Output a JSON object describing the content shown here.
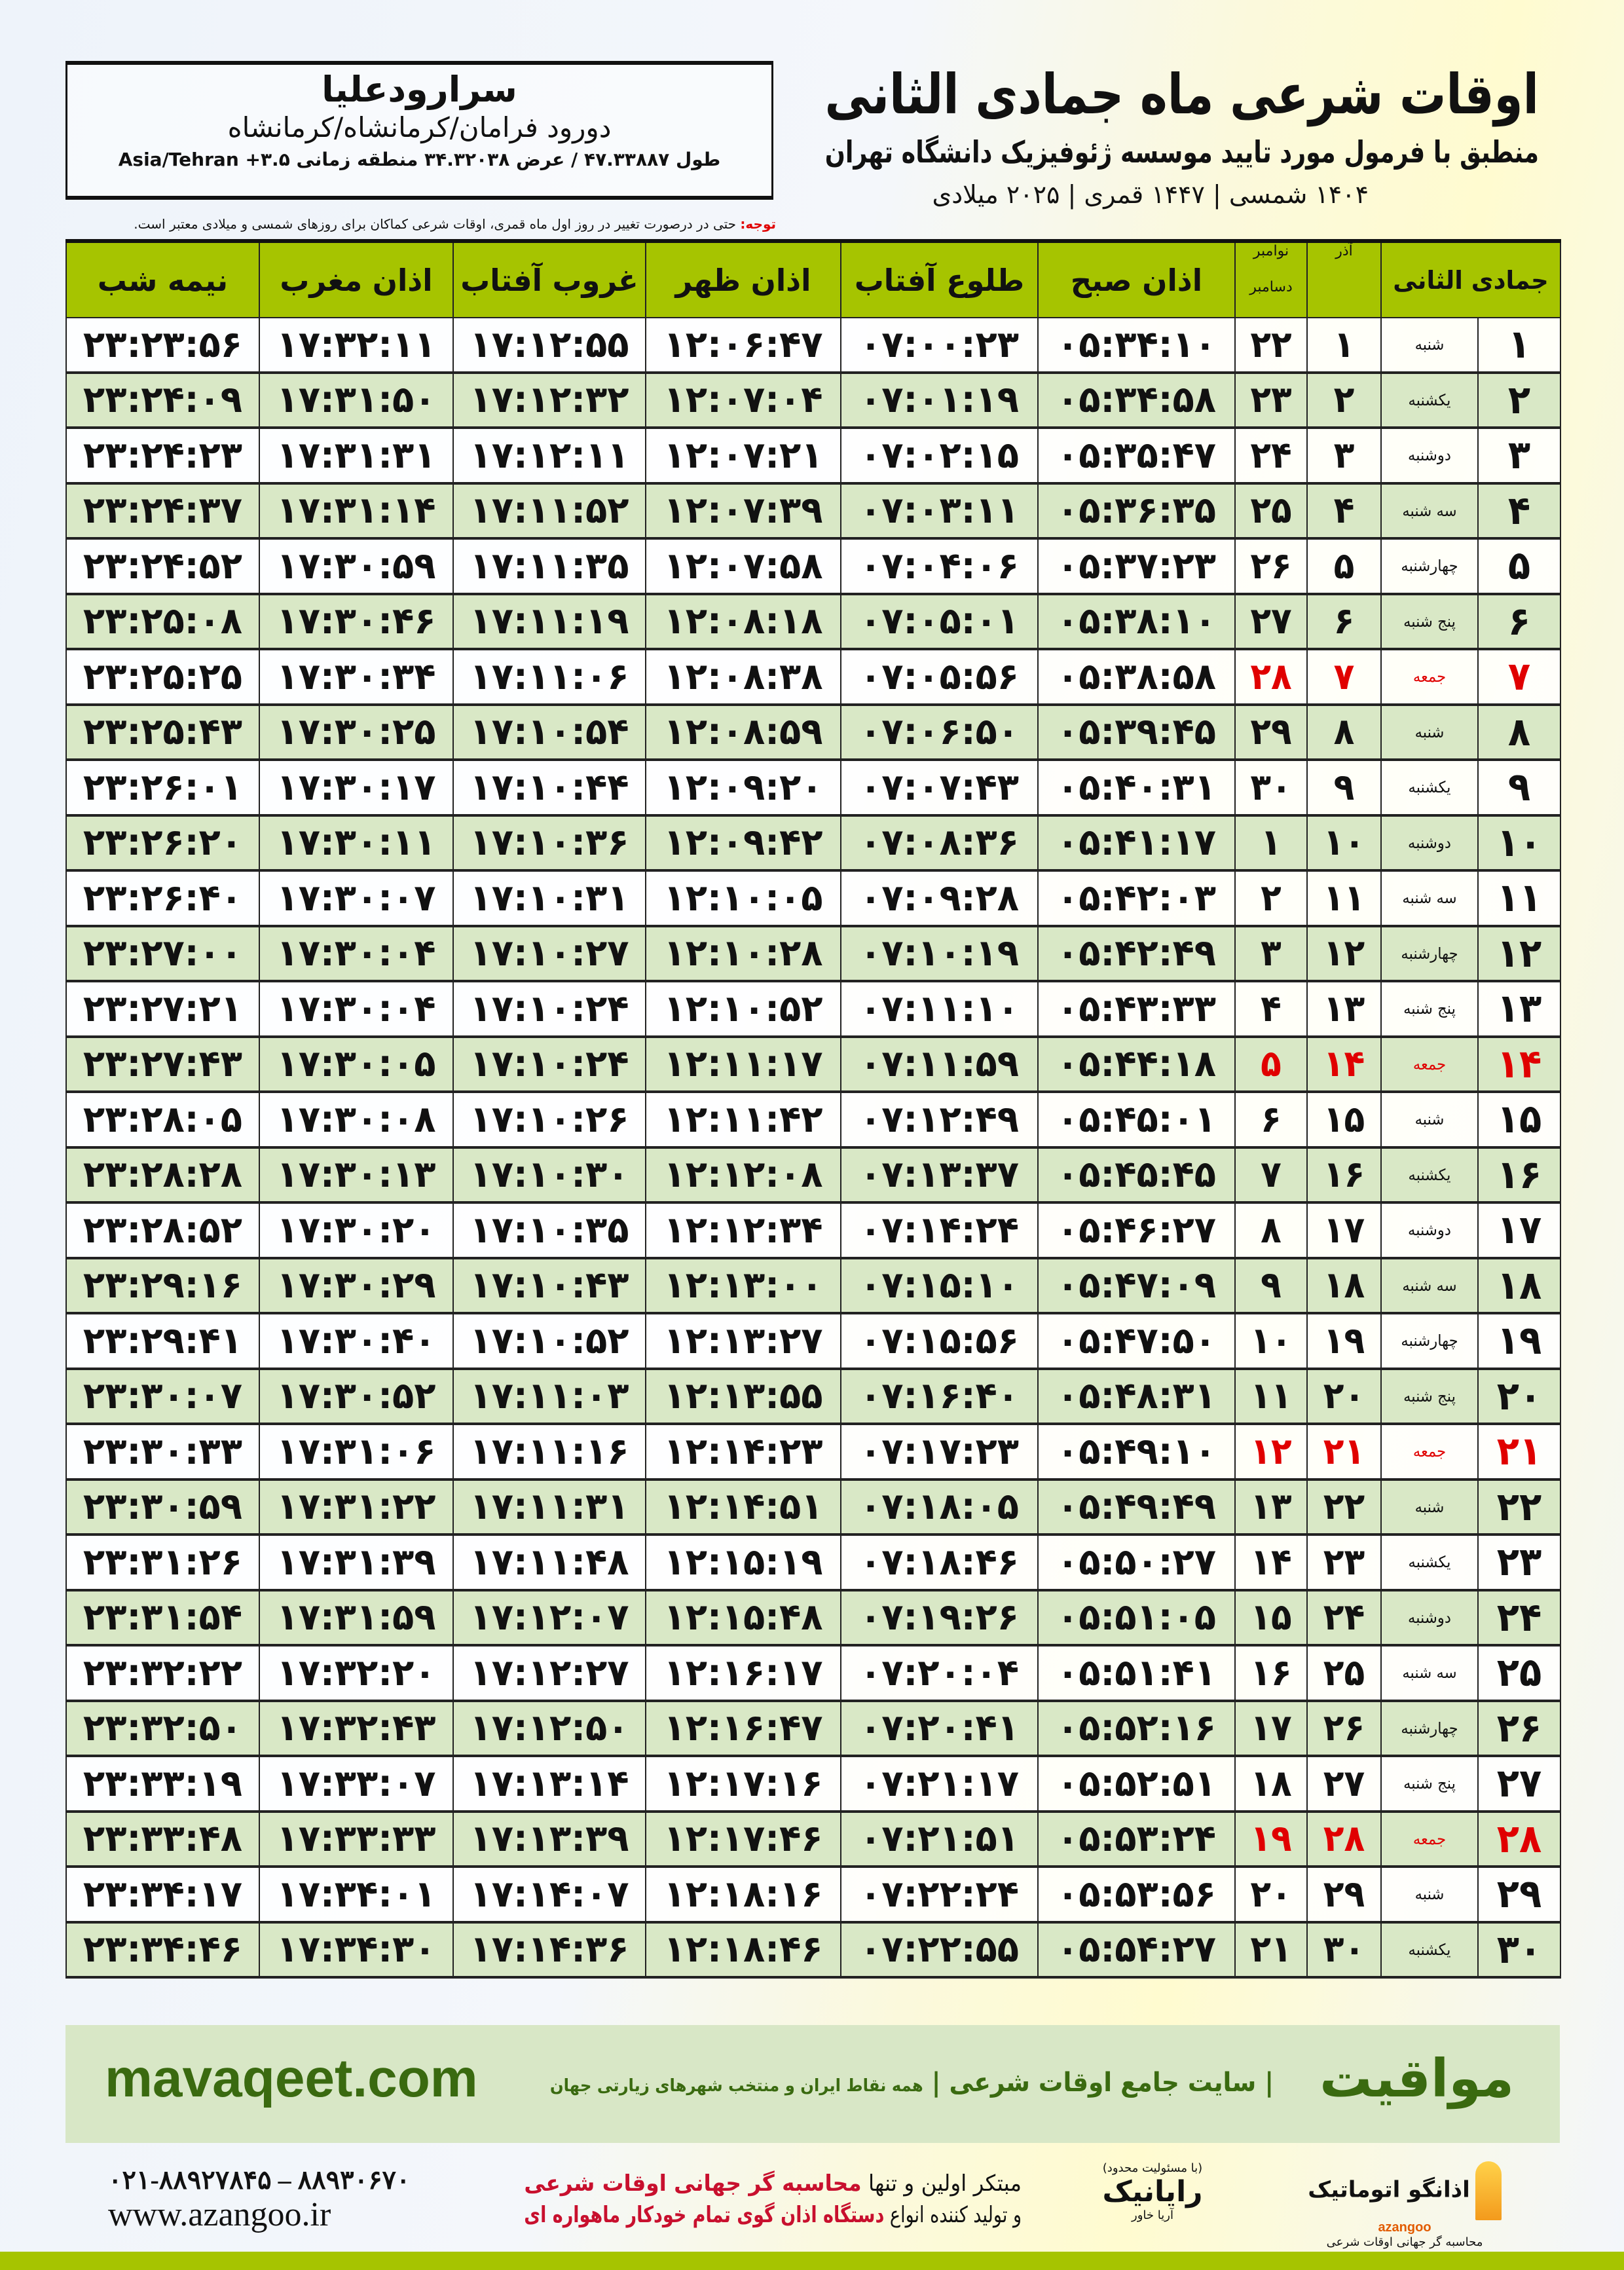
{
  "header": {
    "title": "اوقات شرعی ماه جمادی الثانی",
    "subtitle": "منطبق با فرمول مورد تایید موسسه ژئوفیزیک دانشگاه تهران",
    "years": "۱۴۰۴ شمسی | ۱۴۴۷ قمری | ۲۰۲۵ میلادی"
  },
  "location": {
    "name": "سرارودعلیا",
    "region": "دورود فرامان/کرمانشاه/کرمانشاه",
    "coords": "طول ۴۷.۳۳۸۸۷ / عرض ۳۴.۳۲۰۳۸ منطقه زمانی ۳.۵+ Asia/Tehran"
  },
  "note": {
    "label": "توجه:",
    "text": " حتی در درصورت تغییر در روز اول ماه قمری، اوقات شرعی کماکان برای روزهای شمسی و میلادی معتبر است."
  },
  "table": {
    "headers": {
      "hijri": "جمادی الثانی",
      "azar": "آذر",
      "gregorian_top": "نوامبر",
      "gregorian_bottom": "دسامبر",
      "fajr": "اذان صبح",
      "sunrise": "طلوع آفتاب",
      "dhuhr": "اذان ظهر",
      "sunset": "غروب آفتاب",
      "maghrib": "اذان مغرب",
      "midnight": "نیمه شب"
    },
    "rows": [
      [
        "۱",
        "شنبه",
        "۱",
        "۲۲",
        "۰۵:۳۴:۱۰",
        "۰۷:۰۰:۲۳",
        "۱۲:۰۶:۴۷",
        "۱۷:۱۲:۵۵",
        "۱۷:۳۲:۱۱",
        "۲۳:۲۳:۵۶"
      ],
      [
        "۲",
        "یکشنبه",
        "۲",
        "۲۳",
        "۰۵:۳۴:۵۸",
        "۰۷:۰۱:۱۹",
        "۱۲:۰۷:۰۴",
        "۱۷:۱۲:۳۲",
        "۱۷:۳۱:۵۰",
        "۲۳:۲۴:۰۹"
      ],
      [
        "۳",
        "دوشنبه",
        "۳",
        "۲۴",
        "۰۵:۳۵:۴۷",
        "۰۷:۰۲:۱۵",
        "۱۲:۰۷:۲۱",
        "۱۷:۱۲:۱۱",
        "۱۷:۳۱:۳۱",
        "۲۳:۲۴:۲۳"
      ],
      [
        "۴",
        "سه شنبه",
        "۴",
        "۲۵",
        "۰۵:۳۶:۳۵",
        "۰۷:۰۳:۱۱",
        "۱۲:۰۷:۳۹",
        "۱۷:۱۱:۵۲",
        "۱۷:۳۱:۱۴",
        "۲۳:۲۴:۳۷"
      ],
      [
        "۵",
        "چهارشنبه",
        "۵",
        "۲۶",
        "۰۵:۳۷:۲۳",
        "۰۷:۰۴:۰۶",
        "۱۲:۰۷:۵۸",
        "۱۷:۱۱:۳۵",
        "۱۷:۳۰:۵۹",
        "۲۳:۲۴:۵۲"
      ],
      [
        "۶",
        "پنج شنبه",
        "۶",
        "۲۷",
        "۰۵:۳۸:۱۰",
        "۰۷:۰۵:۰۱",
        "۱۲:۰۸:۱۸",
        "۱۷:۱۱:۱۹",
        "۱۷:۳۰:۴۶",
        "۲۳:۲۵:۰۸"
      ],
      [
        "۷",
        "جمعه",
        "۷",
        "۲۸",
        "۰۵:۳۸:۵۸",
        "۰۷:۰۵:۵۶",
        "۱۲:۰۸:۳۸",
        "۱۷:۱۱:۰۶",
        "۱۷:۳۰:۳۴",
        "۲۳:۲۵:۲۵"
      ],
      [
        "۸",
        "شنبه",
        "۸",
        "۲۹",
        "۰۵:۳۹:۴۵",
        "۰۷:۰۶:۵۰",
        "۱۲:۰۸:۵۹",
        "۱۷:۱۰:۵۴",
        "۱۷:۳۰:۲۵",
        "۲۳:۲۵:۴۳"
      ],
      [
        "۹",
        "یکشنبه",
        "۹",
        "۳۰",
        "۰۵:۴۰:۳۱",
        "۰۷:۰۷:۴۳",
        "۱۲:۰۹:۲۰",
        "۱۷:۱۰:۴۴",
        "۱۷:۳۰:۱۷",
        "۲۳:۲۶:۰۱"
      ],
      [
        "۱۰",
        "دوشنبه",
        "۱۰",
        "۱",
        "۰۵:۴۱:۱۷",
        "۰۷:۰۸:۳۶",
        "۱۲:۰۹:۴۲",
        "۱۷:۱۰:۳۶",
        "۱۷:۳۰:۱۱",
        "۲۳:۲۶:۲۰"
      ],
      [
        "۱۱",
        "سه شنبه",
        "۱۱",
        "۲",
        "۰۵:۴۲:۰۳",
        "۰۷:۰۹:۲۸",
        "۱۲:۱۰:۰۵",
        "۱۷:۱۰:۳۱",
        "۱۷:۳۰:۰۷",
        "۲۳:۲۶:۴۰"
      ],
      [
        "۱۲",
        "چهارشنبه",
        "۱۲",
        "۳",
        "۰۵:۴۲:۴۹",
        "۰۷:۱۰:۱۹",
        "۱۲:۱۰:۲۸",
        "۱۷:۱۰:۲۷",
        "۱۷:۳۰:۰۴",
        "۲۳:۲۷:۰۰"
      ],
      [
        "۱۳",
        "پنج شنبه",
        "۱۳",
        "۴",
        "۰۵:۴۳:۳۳",
        "۰۷:۱۱:۱۰",
        "۱۲:۱۰:۵۲",
        "۱۷:۱۰:۲۴",
        "۱۷:۳۰:۰۴",
        "۲۳:۲۷:۲۱"
      ],
      [
        "۱۴",
        "جمعه",
        "۱۴",
        "۵",
        "۰۵:۴۴:۱۸",
        "۰۷:۱۱:۵۹",
        "۱۲:۱۱:۱۷",
        "۱۷:۱۰:۲۴",
        "۱۷:۳۰:۰۵",
        "۲۳:۲۷:۴۳"
      ],
      [
        "۱۵",
        "شنبه",
        "۱۵",
        "۶",
        "۰۵:۴۵:۰۱",
        "۰۷:۱۲:۴۹",
        "۱۲:۱۱:۴۲",
        "۱۷:۱۰:۲۶",
        "۱۷:۳۰:۰۸",
        "۲۳:۲۸:۰۵"
      ],
      [
        "۱۶",
        "یکشنبه",
        "۱۶",
        "۷",
        "۰۵:۴۵:۴۵",
        "۰۷:۱۳:۳۷",
        "۱۲:۱۲:۰۸",
        "۱۷:۱۰:۳۰",
        "۱۷:۳۰:۱۳",
        "۲۳:۲۸:۲۸"
      ],
      [
        "۱۷",
        "دوشنبه",
        "۱۷",
        "۸",
        "۰۵:۴۶:۲۷",
        "۰۷:۱۴:۲۴",
        "۱۲:۱۲:۳۴",
        "۱۷:۱۰:۳۵",
        "۱۷:۳۰:۲۰",
        "۲۳:۲۸:۵۲"
      ],
      [
        "۱۸",
        "سه شنبه",
        "۱۸",
        "۹",
        "۰۵:۴۷:۰۹",
        "۰۷:۱۵:۱۰",
        "۱۲:۱۳:۰۰",
        "۱۷:۱۰:۴۳",
        "۱۷:۳۰:۲۹",
        "۲۳:۲۹:۱۶"
      ],
      [
        "۱۹",
        "چهارشنبه",
        "۱۹",
        "۱۰",
        "۰۵:۴۷:۵۰",
        "۰۷:۱۵:۵۶",
        "۱۲:۱۳:۲۷",
        "۱۷:۱۰:۵۲",
        "۱۷:۳۰:۴۰",
        "۲۳:۲۹:۴۱"
      ],
      [
        "۲۰",
        "پنج شنبه",
        "۲۰",
        "۱۱",
        "۰۵:۴۸:۳۱",
        "۰۷:۱۶:۴۰",
        "۱۲:۱۳:۵۵",
        "۱۷:۱۱:۰۳",
        "۱۷:۳۰:۵۲",
        "۲۳:۳۰:۰۷"
      ],
      [
        "۲۱",
        "جمعه",
        "۲۱",
        "۱۲",
        "۰۵:۴۹:۱۰",
        "۰۷:۱۷:۲۳",
        "۱۲:۱۴:۲۳",
        "۱۷:۱۱:۱۶",
        "۱۷:۳۱:۰۶",
        "۲۳:۳۰:۳۳"
      ],
      [
        "۲۲",
        "شنبه",
        "۲۲",
        "۱۳",
        "۰۵:۴۹:۴۹",
        "۰۷:۱۸:۰۵",
        "۱۲:۱۴:۵۱",
        "۱۷:۱۱:۳۱",
        "۱۷:۳۱:۲۲",
        "۲۳:۳۰:۵۹"
      ],
      [
        "۲۳",
        "یکشنبه",
        "۲۳",
        "۱۴",
        "۰۵:۵۰:۲۷",
        "۰۷:۱۸:۴۶",
        "۱۲:۱۵:۱۹",
        "۱۷:۱۱:۴۸",
        "۱۷:۳۱:۳۹",
        "۲۳:۳۱:۲۶"
      ],
      [
        "۲۴",
        "دوشنبه",
        "۲۴",
        "۱۵",
        "۰۵:۵۱:۰۵",
        "۰۷:۱۹:۲۶",
        "۱۲:۱۵:۴۸",
        "۱۷:۱۲:۰۷",
        "۱۷:۳۱:۵۹",
        "۲۳:۳۱:۵۴"
      ],
      [
        "۲۵",
        "سه شنبه",
        "۲۵",
        "۱۶",
        "۰۵:۵۱:۴۱",
        "۰۷:۲۰:۰۴",
        "۱۲:۱۶:۱۷",
        "۱۷:۱۲:۲۷",
        "۱۷:۳۲:۲۰",
        "۲۳:۳۲:۲۲"
      ],
      [
        "۲۶",
        "چهارشنبه",
        "۲۶",
        "۱۷",
        "۰۵:۵۲:۱۶",
        "۰۷:۲۰:۴۱",
        "۱۲:۱۶:۴۷",
        "۱۷:۱۲:۵۰",
        "۱۷:۳۲:۴۳",
        "۲۳:۳۲:۵۰"
      ],
      [
        "۲۷",
        "پنج شنبه",
        "۲۷",
        "۱۸",
        "۰۵:۵۲:۵۱",
        "۰۷:۲۱:۱۷",
        "۱۲:۱۷:۱۶",
        "۱۷:۱۳:۱۴",
        "۱۷:۳۳:۰۷",
        "۲۳:۳۳:۱۹"
      ],
      [
        "۲۸",
        "جمعه",
        "۲۸",
        "۱۹",
        "۰۵:۵۳:۲۴",
        "۰۷:۲۱:۵۱",
        "۱۲:۱۷:۴۶",
        "۱۷:۱۳:۳۹",
        "۱۷:۳۳:۳۳",
        "۲۳:۳۳:۴۸"
      ],
      [
        "۲۹",
        "شنبه",
        "۲۹",
        "۲۰",
        "۰۵:۵۳:۵۶",
        "۰۷:۲۲:۲۴",
        "۱۲:۱۸:۱۶",
        "۱۷:۱۴:۰۷",
        "۱۷:۳۴:۰۱",
        "۲۳:۳۴:۱۷"
      ],
      [
        "۳۰",
        "یکشنبه",
        "۳۰",
        "۲۱",
        "۰۵:۵۴:۲۷",
        "۰۷:۲۲:۵۵",
        "۱۲:۱۸:۴۶",
        "۱۷:۱۴:۳۶",
        "۱۷:۳۴:۳۰",
        "۲۳:۳۴:۴۶"
      ]
    ],
    "holiday_weekday": "جمعه"
  },
  "footer": {
    "brand": "مواقیت",
    "tagline": "| سایت جامع اوقات شرعی |",
    "tagline_small": "همه نقاط ایران و منتخب شهرهای زیارتی جهان",
    "site": "mavaqeet.com",
    "logo1": "اذانگو اتوماتیک",
    "logo1_en": "azangoo",
    "logo1_sub": "محاسبه گر جهانی اوقات شرعی",
    "logo2": "رایانیک",
    "logo2_sub": "آریا خاور",
    "logo2_note": "(با مسئولیت محدود)",
    "promo_line1_a": "مبتکر اولین و تنها ",
    "promo_line1_b": "محاسبه گر جهانی اوقات شرعی",
    "promo_line2_a": "و تولید کننده انواع ",
    "promo_line2_b": "دستگاه اذان گوی تمام خودکار ماهواره ای",
    "phones": "۰۲۱-۸۸۹۲۷۸۴۵ – ۸۸۹۳۰۶۷۰",
    "web": "www.azangoo.ir"
  },
  "colors": {
    "header_green": "#a6c400",
    "row_alt": "#d9e8c6",
    "holiday_red": "#e00000",
    "brand_green": "#3a6a10"
  }
}
